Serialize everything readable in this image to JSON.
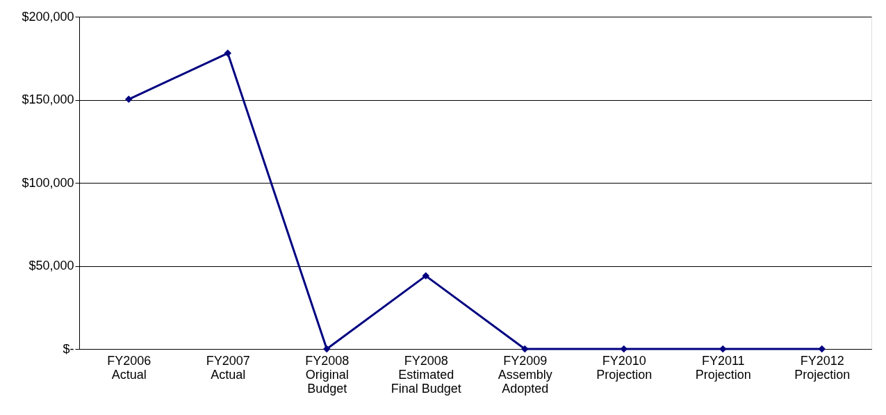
{
  "chart_data": {
    "type": "line",
    "categories": [
      "FY2006\nActual",
      "FY2007\nActual",
      "FY2008\nOriginal\nBudget",
      "FY2008\nEstimated\nFinal Budget",
      "FY2009\nAssembly\nAdopted",
      "FY2010\nProjection",
      "FY2011\nProjection",
      "FY2012\nProjection"
    ],
    "series": [
      {
        "color": "#000080",
        "values": [
          150300,
          178000,
          0,
          44000,
          0,
          0,
          0,
          0
        ]
      }
    ],
    "ylim": [
      0,
      200000
    ],
    "yticks": [
      {
        "value": 0,
        "label": "$-"
      },
      {
        "value": 50000,
        "label": "$50,000"
      },
      {
        "value": 100000,
        "label": "$100,000"
      },
      {
        "value": 150000,
        "label": "$150,000"
      },
      {
        "value": 200000,
        "label": "$200,000"
      }
    ],
    "grid": "y",
    "marker": "diamond",
    "line_style": "solid"
  }
}
